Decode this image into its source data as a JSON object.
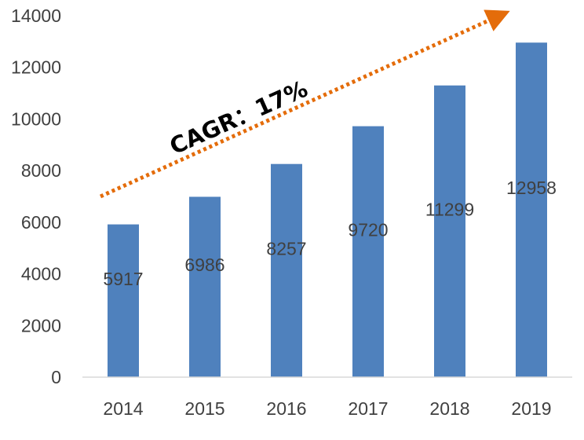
{
  "chart_data": {
    "type": "bar",
    "categories": [
      "2014",
      "2015",
      "2016",
      "2017",
      "2018",
      "2019"
    ],
    "values": [
      5917,
      6986,
      8257,
      9720,
      11299,
      12958
    ],
    "data_labels": [
      "5917",
      "6986",
      "8257",
      "9720",
      "11299",
      "12958"
    ],
    "ylim": [
      0,
      14000
    ],
    "yticks": [
      "0",
      "2000",
      "4000",
      "6000",
      "8000",
      "10000",
      "12000",
      "14000"
    ],
    "grid": false,
    "legend": "none",
    "title": "",
    "xlabel": "",
    "ylabel": "",
    "annotation": {
      "text": "CAGR：17%",
      "style": "dotted arrow rising left to right"
    }
  },
  "colors": {
    "bar": "#4f81bd",
    "arrow": "#e46c0a",
    "text": "#404040",
    "axis": "#d9d9d9"
  }
}
